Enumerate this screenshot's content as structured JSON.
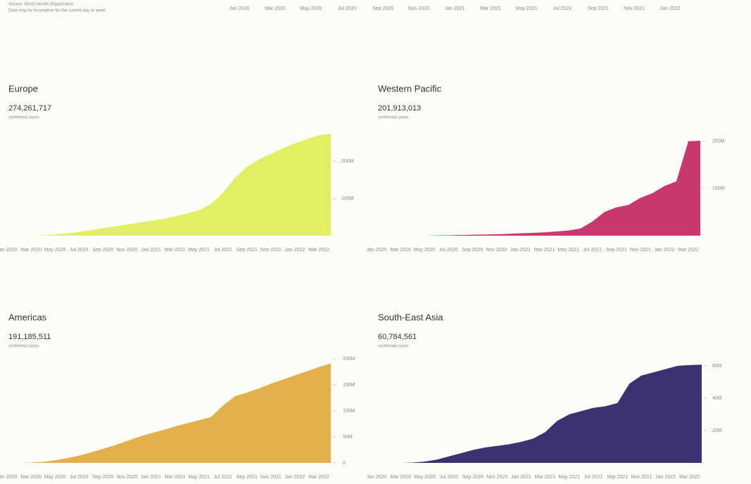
{
  "header": {
    "source": "Source: World Health Organization",
    "note": "Data may be incomplete for the current day or week",
    "top_axis_labels": [
      "Jan 2020",
      "Mar 2020",
      "May 2020",
      "Jul 2020",
      "Sep 2020",
      "Nov 2020",
      "Jan 2021",
      "Mar 2021",
      "May 2021",
      "Jul 2021",
      "Sep 2021",
      "Nov 2021",
      "Jan 2022"
    ]
  },
  "chart_data": [
    {
      "type": "area",
      "title": "Europe",
      "total": "274,261,717",
      "subtitle": "confirmed cases",
      "color": "#e2ef62",
      "categories": [
        "Jan 2020",
        null,
        "Mar 2020",
        null,
        "May 2020",
        null,
        "Jul 2020",
        null,
        "Sep 2020",
        null,
        "Nov 2020",
        null,
        "Jan 2021",
        null,
        "Mar 2021",
        null,
        "May 2021",
        null,
        "Jul 2021",
        null,
        "Sep 2021",
        null,
        "Nov 2021",
        null,
        "Jan 2022",
        null,
        "Mar 2022",
        null
      ],
      "values": [
        0,
        0,
        0,
        1000000,
        3000000,
        6000000,
        10000000,
        15000000,
        20000000,
        25000000,
        30000000,
        35000000,
        40000000,
        45000000,
        52000000,
        60000000,
        68000000,
        85000000,
        115000000,
        155000000,
        185000000,
        205000000,
        220000000,
        235000000,
        248000000,
        260000000,
        270000000,
        274000000
      ],
      "ylim": [
        0,
        280000000
      ],
      "yticks": [
        {
          "value": 100000000,
          "label": "100M"
        },
        {
          "value": 200000000,
          "label": "200M"
        }
      ]
    },
    {
      "type": "area",
      "title": "Western Pacific",
      "total": "201,913,013",
      "subtitle": "confirmed cases",
      "color": "#c8386e",
      "categories": [
        "Jan 2020",
        null,
        "Mar 2020",
        null,
        "May 2020",
        null,
        "Jul 2020",
        null,
        "Sep 2020",
        null,
        "Nov 2020",
        null,
        "Jan 2021",
        null,
        "Mar 2021",
        null,
        "May 2021",
        null,
        "Jul 2021",
        null,
        "Sep 2021",
        null,
        "Nov 2021",
        null,
        "Jan 2022",
        null,
        "Mar 2022",
        null
      ],
      "values": [
        0,
        0,
        0,
        0,
        0,
        500000,
        1000000,
        1500000,
        2000000,
        2500000,
        3000000,
        4000000,
        5000000,
        6000000,
        7000000,
        9000000,
        11000000,
        15000000,
        30000000,
        50000000,
        60000000,
        65000000,
        80000000,
        90000000,
        105000000,
        115000000,
        200000000,
        201000000
      ],
      "ylim": [
        0,
        210000000
      ],
      "yticks": [
        {
          "value": 100000000,
          "label": "100M"
        },
        {
          "value": 200000000,
          "label": "200M"
        }
      ]
    },
    {
      "type": "area",
      "title": "Americas",
      "total": "191,185,511",
      "subtitle": "confirmed cases",
      "color": "#e3b04b",
      "categories": [
        "Jan 2020",
        null,
        "Mar 2020",
        null,
        "May 2020",
        null,
        "Jul 2020",
        null,
        "Sep 2020",
        null,
        "Nov 2020",
        null,
        "Jan 2021",
        null,
        "Mar 2021",
        null,
        "May 2021",
        null,
        "Jul 2021",
        null,
        "Sep 2021",
        null,
        "Nov 2021",
        null,
        "Jan 2022",
        null,
        "Mar 2022",
        null
      ],
      "values": [
        0,
        0,
        500000,
        2000000,
        5000000,
        9000000,
        14000000,
        20000000,
        27000000,
        34000000,
        42000000,
        50000000,
        57000000,
        63000000,
        70000000,
        76000000,
        82000000,
        88000000,
        110000000,
        128000000,
        135000000,
        143000000,
        152000000,
        160000000,
        168000000,
        176000000,
        184000000,
        191000000
      ],
      "ylim": [
        0,
        200000000
      ],
      "yticks": [
        0,
        {
          "value": 50000000,
          "label": "50M"
        },
        {
          "value": 100000000,
          "label": "100M"
        },
        {
          "value": 150000000,
          "label": "150M"
        },
        {
          "value": 200000000,
          "label": "200M"
        }
      ]
    },
    {
      "type": "area",
      "title": "South-East Asia",
      "total": "60,784,561",
      "subtitle": "confirmed cases",
      "color": "#3d3270",
      "categories": [
        "Jan 2020",
        null,
        "Mar 2020",
        null,
        "May 2020",
        null,
        "Jul 2020",
        null,
        "Sep 2020",
        null,
        "Nov 2020",
        null,
        "Jan 2021",
        null,
        "Mar 2021",
        null,
        "May 2021",
        null,
        "Jul 2021",
        null,
        "Sep 2021",
        null,
        "Nov 2021",
        null,
        "Jan 2022",
        null,
        "Mar 2022",
        null
      ],
      "values": [
        0,
        0,
        0,
        200000,
        800000,
        2000000,
        4000000,
        6000000,
        8000000,
        9500000,
        10500000,
        11500000,
        13000000,
        15000000,
        19000000,
        26000000,
        30000000,
        32000000,
        34000000,
        35000000,
        37000000,
        49000000,
        54000000,
        56000000,
        58000000,
        60000000,
        60500000,
        60700000
      ],
      "ylim": [
        0,
        65000000
      ],
      "yticks": [
        {
          "value": 20000000,
          "label": "20M"
        },
        {
          "value": 40000000,
          "label": "40M"
        },
        {
          "value": 60000000,
          "label": "60M"
        }
      ]
    }
  ]
}
